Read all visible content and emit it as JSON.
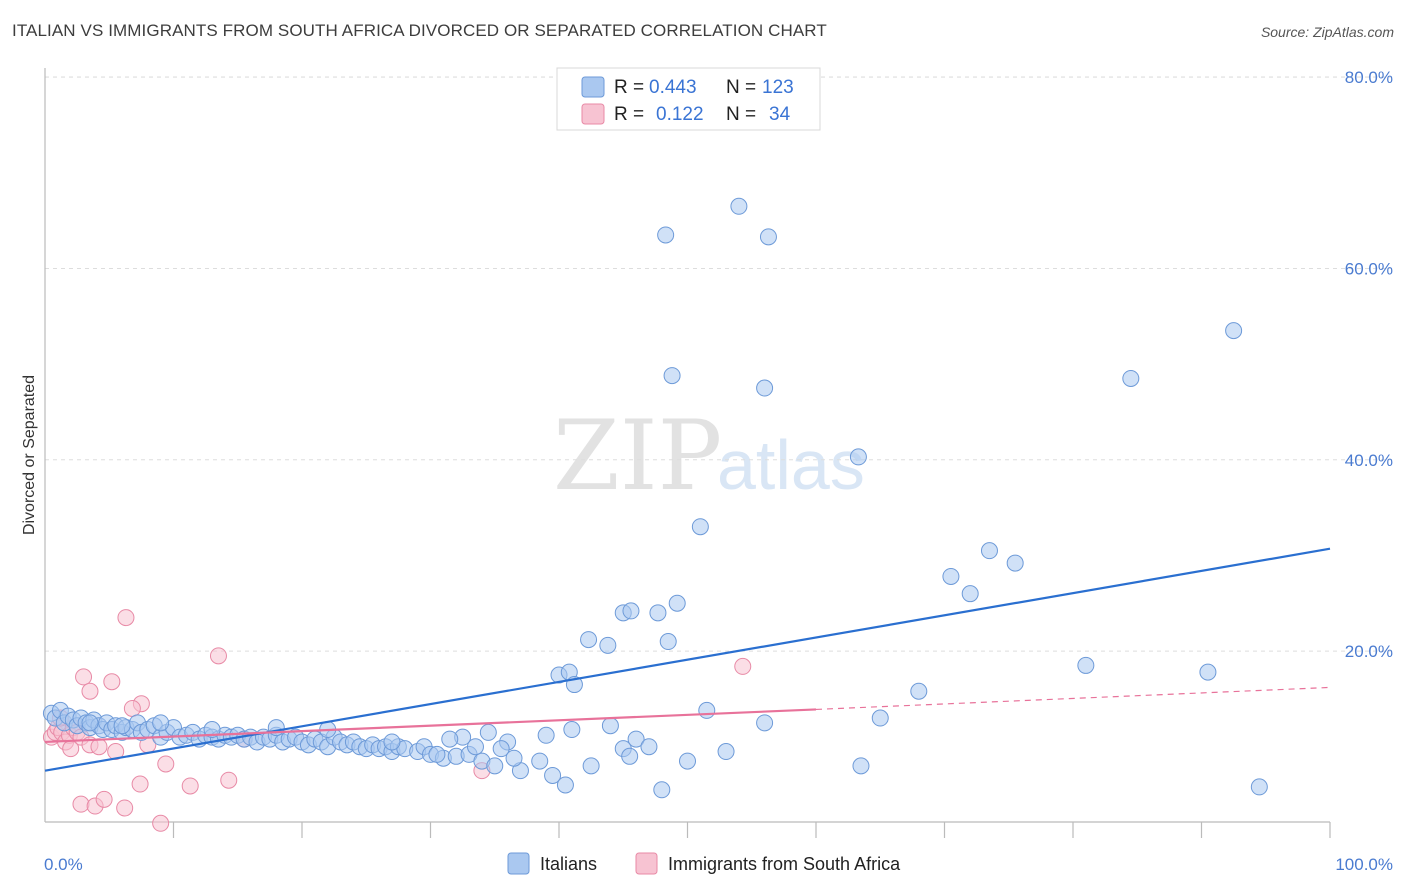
{
  "header": {
    "title": "ITALIAN VS IMMIGRANTS FROM SOUTH AFRICA DIVORCED OR SEPARATED CORRELATION CHART",
    "source": "Source: ZipAtlas.com"
  },
  "watermark": {
    "part1": "ZIP",
    "part2": "atlas"
  },
  "legend": {
    "rows": [
      {
        "r_label": "R =",
        "r_value": "0.443",
        "n_label": "N =",
        "n_value": "123"
      },
      {
        "r_label": "R =",
        "r_value": "0.122",
        "n_label": "N =",
        "n_value": "34"
      }
    ]
  },
  "bottom_legend": {
    "items": [
      {
        "label": "Italians"
      },
      {
        "label": "Immigrants from South Africa"
      }
    ]
  },
  "colors": {
    "blue_fill": "#aac8f0",
    "blue_stroke": "#6d9ad8",
    "blue_line": "#2a6fd0",
    "pink_fill": "#f7c3d2",
    "pink_stroke": "#e88aa6",
    "pink_line": "#e8729a",
    "grid": "#dddddd",
    "tick_text": "#4a7bd0"
  },
  "chart_data": {
    "type": "scatter",
    "title": "ITALIAN VS IMMIGRANTS FROM SOUTH AFRICA DIVORCED OR SEPARATED CORRELATION CHART",
    "xlabel": "",
    "ylabel": "Divorced or Separated",
    "xlim": [
      0,
      100
    ],
    "ylim": [
      0,
      85
    ],
    "x_tick_labels": [
      "0.0%",
      "100.0%"
    ],
    "y_ticks": [
      20,
      40,
      60,
      80
    ],
    "y_tick_labels": [
      "20.0%",
      "40.0%",
      "60.0%",
      "80.0%"
    ],
    "grid": true,
    "legend_placement": "top-center",
    "series": [
      {
        "name": "Italians",
        "r": 0.443,
        "n": 123,
        "trend": {
          "x": [
            0,
            100
          ],
          "y": [
            7.5,
            30.7
          ]
        },
        "points": [
          [
            0.5,
            13.5
          ],
          [
            0.8,
            13
          ],
          [
            1.2,
            13.8
          ],
          [
            1.5,
            12.5
          ],
          [
            1.8,
            13.2
          ],
          [
            2.2,
            12.8
          ],
          [
            2.5,
            12.2
          ],
          [
            2.8,
            13
          ],
          [
            3.2,
            12.5
          ],
          [
            3.5,
            12
          ],
          [
            3.8,
            12.8
          ],
          [
            4.2,
            12.2
          ],
          [
            4.5,
            11.8
          ],
          [
            4.8,
            12.5
          ],
          [
            5.2,
            11.8
          ],
          [
            5.5,
            12.2
          ],
          [
            6,
            11.5
          ],
          [
            6.3,
            12
          ],
          [
            6.8,
            11.8
          ],
          [
            7.2,
            12.5
          ],
          [
            7.5,
            11.5
          ],
          [
            8,
            11.8
          ],
          [
            8.5,
            12.2
          ],
          [
            9,
            11
          ],
          [
            9.5,
            11.5
          ],
          [
            10,
            12
          ],
          [
            10.5,
            11
          ],
          [
            11,
            11.2
          ],
          [
            11.5,
            11.5
          ],
          [
            12,
            10.8
          ],
          [
            12.5,
            11.2
          ],
          [
            13,
            11
          ],
          [
            13.5,
            10.8
          ],
          [
            14,
            11.2
          ],
          [
            14.5,
            11
          ],
          [
            15,
            11.2
          ],
          [
            15.5,
            10.8
          ],
          [
            16,
            11
          ],
          [
            16.5,
            10.5
          ],
          [
            17,
            11
          ],
          [
            17.5,
            10.8
          ],
          [
            18,
            11.2
          ],
          [
            18.5,
            10.5
          ],
          [
            19,
            10.8
          ],
          [
            19.5,
            11
          ],
          [
            20,
            10.5
          ],
          [
            20.5,
            10.2
          ],
          [
            21,
            10.8
          ],
          [
            21.5,
            10.5
          ],
          [
            22,
            10
          ],
          [
            22.5,
            11
          ],
          [
            23,
            10.5
          ],
          [
            23.5,
            10.2
          ],
          [
            24,
            10.5
          ],
          [
            24.5,
            10
          ],
          [
            25,
            9.8
          ],
          [
            25.5,
            10.2
          ],
          [
            26,
            9.8
          ],
          [
            26.5,
            10
          ],
          [
            27,
            9.5
          ],
          [
            27.5,
            10
          ],
          [
            28,
            9.8
          ],
          [
            29,
            9.5
          ],
          [
            29.5,
            10
          ],
          [
            30,
            9.2
          ],
          [
            31,
            8.8
          ],
          [
            32,
            9
          ],
          [
            33,
            9.2
          ],
          [
            34,
            8.5
          ],
          [
            35,
            8
          ],
          [
            3.5,
            12.5
          ],
          [
            6,
            12.2
          ],
          [
            9,
            12.5
          ],
          [
            13,
            11.8
          ],
          [
            18,
            12
          ],
          [
            22,
            11.8
          ],
          [
            27,
            10.5
          ],
          [
            30.5,
            9.2
          ],
          [
            34.5,
            11.5
          ],
          [
            36,
            10.5
          ],
          [
            39,
            11.2
          ],
          [
            41,
            11.8
          ],
          [
            44,
            12.2
          ],
          [
            46,
            10.8
          ],
          [
            33.5,
            10
          ],
          [
            35.5,
            9.8
          ],
          [
            37,
            7.5
          ],
          [
            39.5,
            7
          ],
          [
            40.5,
            6
          ],
          [
            42.5,
            8
          ],
          [
            45,
            9.8
          ],
          [
            45.5,
            9
          ],
          [
            47,
            10
          ],
          [
            50,
            8.5
          ],
          [
            53,
            9.5
          ],
          [
            36.5,
            8.8
          ],
          [
            38.5,
            8.5
          ],
          [
            32.5,
            11
          ],
          [
            31.5,
            10.8
          ],
          [
            40,
            17.5
          ],
          [
            40.8,
            17.8
          ],
          [
            41.2,
            16.5
          ],
          [
            42.3,
            21.2
          ],
          [
            43.8,
            20.6
          ],
          [
            45,
            24
          ],
          [
            45.6,
            24.2
          ],
          [
            47.7,
            24
          ],
          [
            49.2,
            25
          ],
          [
            48.5,
            21
          ],
          [
            51.5,
            13.8
          ],
          [
            56,
            12.5
          ],
          [
            68,
            15.8
          ],
          [
            70.5,
            27.8
          ],
          [
            72,
            26
          ],
          [
            73.5,
            30.5
          ],
          [
            75.5,
            29.2
          ],
          [
            81,
            18.5
          ],
          [
            90.5,
            17.8
          ],
          [
            94.5,
            5.8
          ],
          [
            65,
            13
          ],
          [
            63.5,
            8
          ],
          [
            48,
            5.5
          ],
          [
            48.3,
            63.5
          ],
          [
            48.8,
            48.8
          ],
          [
            54,
            66.5
          ],
          [
            56.3,
            63.3
          ],
          [
            56,
            47.5
          ],
          [
            51,
            33
          ],
          [
            63.3,
            40.3
          ],
          [
            84.5,
            48.5
          ],
          [
            92.5,
            53.5
          ]
        ]
      },
      {
        "name": "Immigrants from South Africa",
        "r": 0.122,
        "n": 34,
        "trend": {
          "x": [
            0,
            60
          ],
          "y": [
            10.5,
            13.9
          ]
        },
        "trend_dashed": {
          "x": [
            60,
            100
          ],
          "y": [
            13.9,
            16.2
          ]
        },
        "points": [
          [
            0.5,
            11
          ],
          [
            0.8,
            11.5
          ],
          [
            1,
            12
          ],
          [
            1.3,
            11.5
          ],
          [
            1.6,
            10.5
          ],
          [
            1.9,
            11.2
          ],
          [
            2.2,
            12
          ],
          [
            2.5,
            11.5
          ],
          [
            2.8,
            11
          ],
          [
            2,
            9.8
          ],
          [
            3.5,
            10.2
          ],
          [
            4.2,
            10
          ],
          [
            5.5,
            9.5
          ],
          [
            8,
            10.2
          ],
          [
            15.5,
            10.8
          ],
          [
            34,
            7.5
          ],
          [
            3,
            17.3
          ],
          [
            3.5,
            15.8
          ],
          [
            5.2,
            16.8
          ],
          [
            6.3,
            23.5
          ],
          [
            7.5,
            14.5
          ],
          [
            6.8,
            14
          ],
          [
            13.5,
            19.5
          ],
          [
            2.8,
            4
          ],
          [
            3.9,
            3.8
          ],
          [
            4.6,
            4.5
          ],
          [
            6.2,
            3.6
          ],
          [
            9,
            2
          ],
          [
            7.4,
            6.1
          ],
          [
            9.4,
            8.2
          ],
          [
            11.3,
            5.9
          ],
          [
            14.3,
            6.5
          ],
          [
            54.3,
            18.4
          ],
          [
            1.2,
            13
          ]
        ]
      }
    ]
  }
}
